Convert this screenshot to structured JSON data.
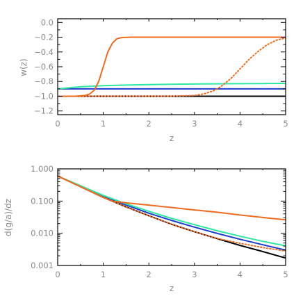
{
  "chart_data": [
    {
      "type": "line",
      "xlabel": "z",
      "ylabel": "w(z)",
      "xlim": [
        0,
        5
      ],
      "ylim": [
        -1.25,
        0.05
      ],
      "grid": false,
      "xticks": [
        0,
        1,
        2,
        3,
        4,
        5
      ],
      "xtick_labels": [
        "0",
        "1",
        "2",
        "3",
        "4",
        "5"
      ],
      "yticks": [
        0.0,
        -0.2,
        -0.4,
        -0.6,
        -0.8,
        -1.0,
        -1.2
      ],
      "ytick_labels": [
        "0.0",
        "−0.2",
        "−0.4",
        "−0.6",
        "−0.8",
        "−1.0",
        "−1.2"
      ],
      "series": [
        {
          "color": "#000000",
          "dash": "solid",
          "x": [
            0,
            5
          ],
          "y": [
            -1.0,
            -1.0
          ]
        },
        {
          "color": "#1e3cd2",
          "dash": "solid",
          "x": [
            0,
            5
          ],
          "y": [
            -0.9,
            -0.9
          ]
        },
        {
          "color": "#2ee8a0",
          "dash": "solid",
          "x": [
            0,
            0.5,
            1,
            1.5,
            2,
            2.5,
            3,
            3.5,
            4,
            4.5,
            5
          ],
          "y": [
            -0.9,
            -0.872,
            -0.857,
            -0.848,
            -0.842,
            -0.838,
            -0.834,
            -0.832,
            -0.83,
            -0.828,
            -0.826
          ]
        },
        {
          "color": "#f06a1e",
          "dash": "solid",
          "x": [
            0,
            0.4,
            0.6,
            0.7,
            0.8,
            0.9,
            1.0,
            1.1,
            1.2,
            1.3,
            1.4,
            1.6,
            2,
            3,
            4,
            5
          ],
          "y": [
            -1.0,
            -0.999,
            -0.99,
            -0.97,
            -0.92,
            -0.8,
            -0.6,
            -0.4,
            -0.28,
            -0.22,
            -0.205,
            -0.2,
            -0.2,
            -0.2,
            -0.2,
            -0.2
          ]
        },
        {
          "color": "#f06a1e",
          "dash": "dotted",
          "x": [
            0,
            2.5,
            3.0,
            3.2,
            3.4,
            3.5,
            3.6,
            3.7,
            3.8,
            4.0,
            4.2,
            4.4,
            4.6,
            4.8,
            5.0
          ],
          "y": [
            -1.0,
            -1.0,
            -0.99,
            -0.97,
            -0.93,
            -0.9,
            -0.86,
            -0.81,
            -0.76,
            -0.63,
            -0.5,
            -0.39,
            -0.3,
            -0.24,
            -0.21
          ]
        }
      ]
    },
    {
      "type": "line",
      "xlabel": "z",
      "ylabel": "d(g/a)/dz",
      "xlim": [
        0,
        5
      ],
      "ylim": [
        0.001,
        1.0
      ],
      "yscale": "log",
      "grid": false,
      "xticks": [
        0,
        1,
        2,
        3,
        4,
        5
      ],
      "xtick_labels": [
        "0",
        "1",
        "2",
        "3",
        "4",
        "5"
      ],
      "yticks": [
        1.0,
        0.1,
        0.01,
        0.001
      ],
      "ytick_labels": [
        "1.000",
        "0.100",
        "0.010",
        "0.001"
      ],
      "series": [
        {
          "color": "#000000",
          "dash": "solid",
          "x": [
            0,
            0.5,
            1,
            1.5,
            2,
            2.5,
            3,
            3.5,
            4,
            4.5,
            5
          ],
          "y": [
            0.6,
            0.28,
            0.13,
            0.066,
            0.035,
            0.019,
            0.0112,
            0.0068,
            0.0042,
            0.0027,
            0.0017
          ]
        },
        {
          "color": "#1e3cd2",
          "dash": "solid",
          "x": [
            0,
            0.5,
            1,
            1.5,
            2,
            2.5,
            3,
            3.5,
            4,
            4.5,
            5
          ],
          "y": [
            0.6,
            0.29,
            0.14,
            0.075,
            0.042,
            0.025,
            0.0155,
            0.0099,
            0.0065,
            0.0044,
            0.003
          ]
        },
        {
          "color": "#2ee8a0",
          "dash": "solid",
          "x": [
            0,
            0.5,
            1,
            1.5,
            2,
            2.5,
            3,
            3.5,
            4,
            4.5,
            5
          ],
          "y": [
            0.6,
            0.3,
            0.15,
            0.082,
            0.048,
            0.029,
            0.0185,
            0.012,
            0.0081,
            0.0056,
            0.0041
          ]
        },
        {
          "color": "#f06a1e",
          "dash": "solid",
          "x": [
            0,
            0.5,
            1,
            1.2,
            1.5,
            2,
            2.5,
            3,
            3.5,
            4,
            4.5,
            5
          ],
          "y": [
            0.6,
            0.28,
            0.13,
            0.1,
            0.088,
            0.075,
            0.063,
            0.053,
            0.045,
            0.037,
            0.031,
            0.026
          ]
        },
        {
          "color": "#f06a1e",
          "dash": "dotted",
          "x": [
            0,
            0.5,
            1,
            1.5,
            2,
            2.5,
            3,
            3.5,
            3.8,
            4,
            4.5,
            5
          ],
          "y": [
            0.6,
            0.28,
            0.13,
            0.066,
            0.035,
            0.019,
            0.0112,
            0.0069,
            0.0056,
            0.0049,
            0.0036,
            0.0028
          ]
        }
      ]
    }
  ]
}
